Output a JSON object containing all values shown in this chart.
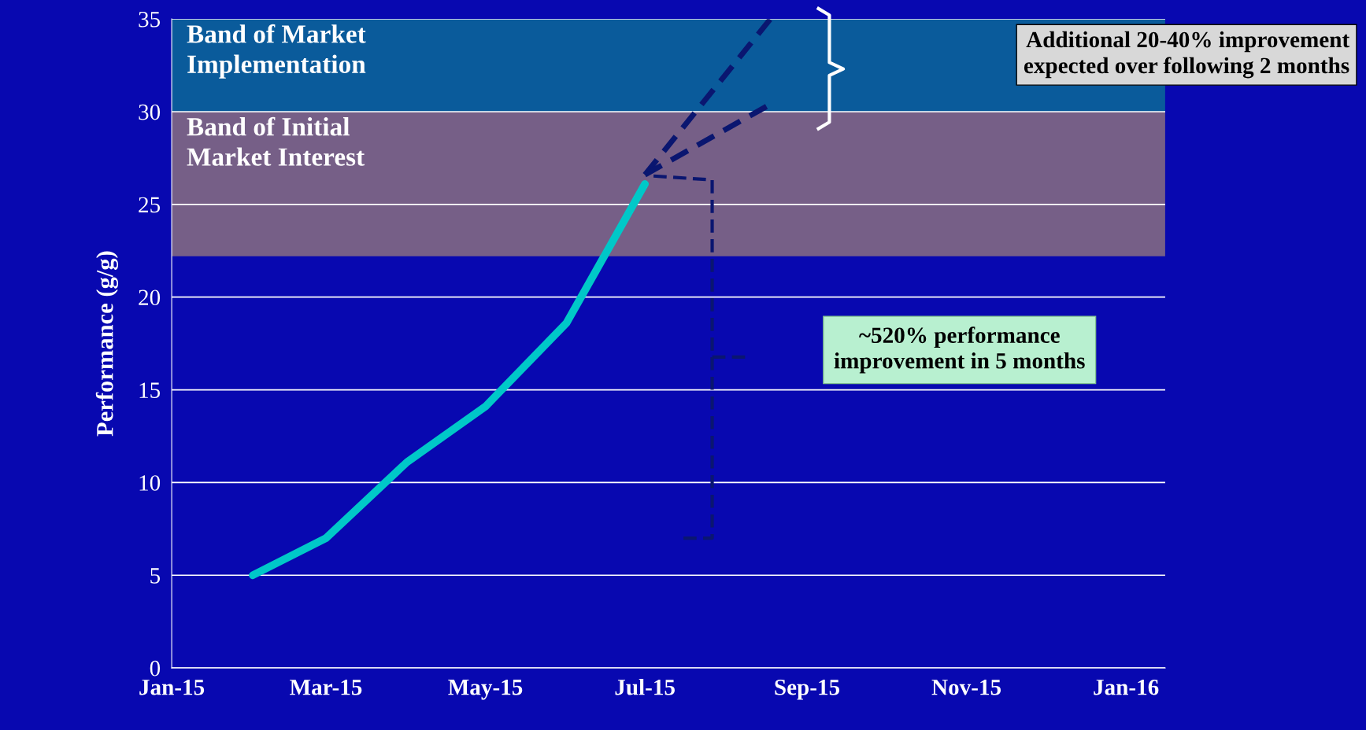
{
  "chart_data": {
    "type": "line",
    "ylabel": "Performance (g/g)",
    "x": [
      "2015-02-01",
      "2015-03-01",
      "2015-04-01",
      "2015-05-01",
      "2015-06-01",
      "2015-07-01"
    ],
    "series": [
      {
        "color": "#00c8c8",
        "values": [
          5.0,
          7.0,
          11.1,
          14.1,
          18.6,
          26.1
        ]
      },
      {
        "color": "#0a1670",
        "line_style": "dashed",
        "x": [
          "2015-07-01",
          "2015-08-18"
        ],
        "values": [
          26.6,
          35.0
        ]
      },
      {
        "color": "#0a1670",
        "line_style": "dashed",
        "x": [
          "2015-07-01",
          "2015-08-18"
        ],
        "values": [
          26.6,
          30.4
        ]
      }
    ],
    "xlim": [
      "2015-01-01",
      "2016-01-16"
    ],
    "xticks": [
      {
        "value": "2015-01-01",
        "label": "Jan-15"
      },
      {
        "value": "2015-03-01",
        "label": "Mar-15"
      },
      {
        "value": "2015-05-01",
        "label": "May-15"
      },
      {
        "value": "2015-07-01",
        "label": "Jul-15"
      },
      {
        "value": "2015-09-01",
        "label": "Sep-15"
      },
      {
        "value": "2015-11-01",
        "label": "Nov-15"
      },
      {
        "value": "2016-01-01",
        "label": "Jan-16"
      }
    ],
    "ylim": [
      0,
      35
    ],
    "yticks": [
      0,
      5,
      10,
      15,
      20,
      25,
      30,
      35
    ],
    "grid": "y",
    "line_style": "solid",
    "marker": "none",
    "bands": [
      {
        "axis": "y",
        "from": 30,
        "to": 35,
        "label": "Band of Market\nImplementation",
        "color": "#0a6a98"
      },
      {
        "axis": "y",
        "from": 22.2,
        "to": 30,
        "label": "Band of Initial\nMarket Interest",
        "color": "#8a6e80"
      }
    ],
    "annotations": [
      "Additional 20-40% improvement\nexpected over following 2 months",
      "~520% performance\nimprovement in 5 months"
    ]
  }
}
